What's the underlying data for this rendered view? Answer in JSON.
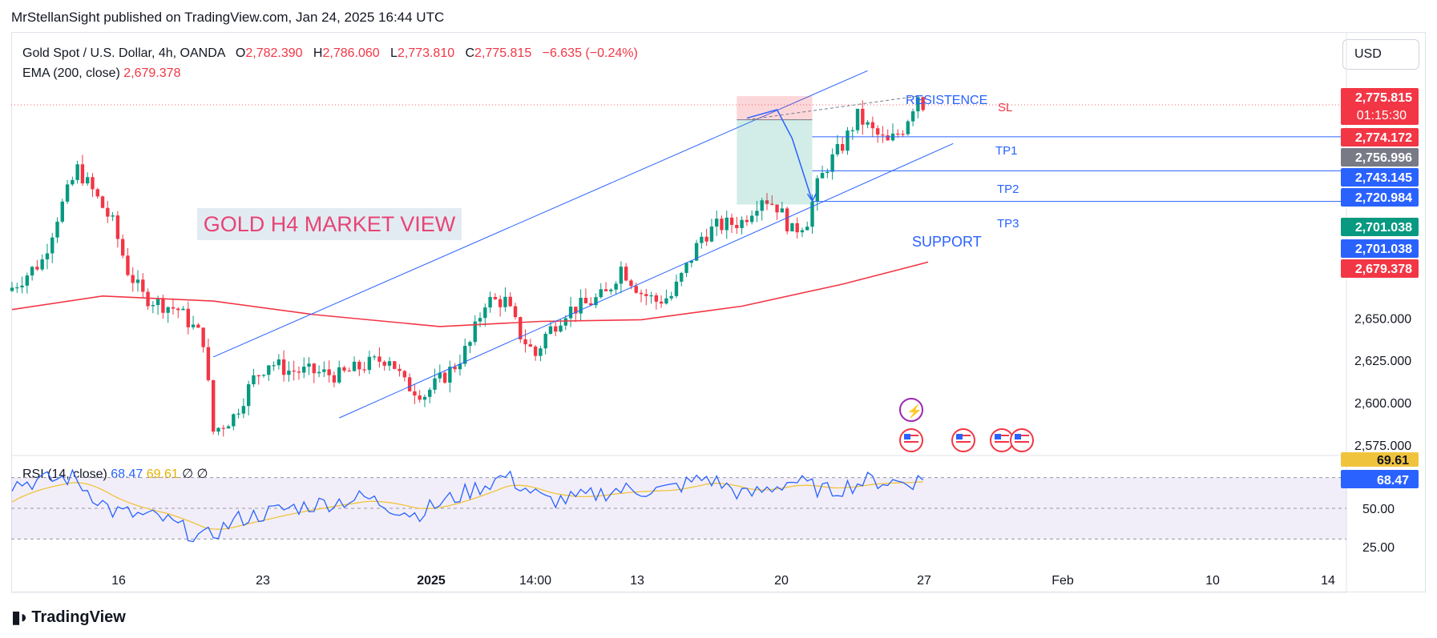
{
  "publisher": "MrStellanSight published on TradingView.com, Jan 24, 2025 16:44 UTC",
  "legend": {
    "symbol": "Gold Spot / U.S. Dollar, 4h, OANDA",
    "o_label": "O",
    "o": "2,782.390",
    "h_label": "H",
    "h": "2,786.060",
    "l_label": "L",
    "l": "2,773.810",
    "c_label": "C",
    "c": "2,775.815",
    "change": "−6.635 (−0.24%)",
    "ema_label": "EMA (200, close)",
    "ema_value": "2,679.378"
  },
  "currency_button": "USD",
  "rsi_legend": {
    "label": "RSI (14, close)",
    "rsi": "68.47",
    "ma": "69.61",
    "extra1": "∅",
    "extra2": "∅"
  },
  "brand": "TradingView",
  "colors": {
    "up": "#089981",
    "down": "#f23645",
    "ema": "#f23645",
    "channel": "#2962ff",
    "rsi": "#2962ff",
    "rsi_ma": "#f0c33c",
    "annotation_pink": "#e64576"
  },
  "chart_data": [
    {
      "type": "candlestick",
      "title": "Gold Spot / U.S. Dollar, 4h, OANDA",
      "y_axis_ticks": [
        "2,650.000",
        "2,625.000",
        "2,600.000",
        "2,575.000"
      ],
      "y_ticks": [
        2650,
        2625,
        2600,
        2575
      ],
      "x_axis_ticks": [
        "16",
        "23",
        "2025",
        "14:00",
        "13",
        "20",
        "27",
        "Feb",
        "10",
        "14"
      ],
      "ylim": [
        2566,
        2793
      ],
      "close_path": [
        [
          0,
          2668
        ],
        [
          6,
          2684
        ],
        [
          9,
          2710
        ],
        [
          13,
          2738
        ],
        [
          16,
          2725
        ],
        [
          20,
          2706
        ],
        [
          23,
          2678
        ],
        [
          26,
          2663
        ],
        [
          30,
          2658
        ],
        [
          33,
          2655
        ],
        [
          37,
          2641
        ],
        [
          38,
          2637
        ],
        [
          40,
          2583
        ],
        [
          44,
          2592
        ],
        [
          48,
          2614
        ],
        [
          51,
          2624
        ],
        [
          55,
          2619
        ],
        [
          60,
          2618
        ],
        [
          65,
          2616
        ],
        [
          70,
          2622
        ],
        [
          75,
          2627
        ],
        [
          78,
          2611
        ],
        [
          82,
          2605
        ],
        [
          86,
          2616
        ],
        [
          88,
          2622
        ],
        [
          91,
          2635
        ],
        [
          94,
          2660
        ],
        [
          98,
          2660
        ],
        [
          101,
          2640
        ],
        [
          104,
          2628
        ],
        [
          106,
          2640
        ],
        [
          110,
          2654
        ],
        [
          114,
          2658
        ],
        [
          118,
          2664
        ],
        [
          121,
          2680
        ],
        [
          125,
          2665
        ],
        [
          128,
          2660
        ],
        [
          131,
          2663
        ],
        [
          134,
          2680
        ],
        [
          137,
          2698
        ],
        [
          140,
          2704
        ],
        [
          145,
          2707
        ],
        [
          149,
          2722
        ],
        [
          152,
          2716
        ],
        [
          155,
          2701
        ],
        [
          158,
          2708
        ],
        [
          160,
          2728
        ],
        [
          162,
          2740
        ],
        [
          165,
          2752
        ],
        [
          168,
          2769
        ],
        [
          171,
          2760
        ],
        [
          174,
          2753
        ],
        [
          177,
          2762
        ],
        [
          180,
          2782
        ],
        [
          181,
          2776
        ]
      ],
      "ema_path": [
        [
          0,
          2655
        ],
        [
          18,
          2663
        ],
        [
          40,
          2660
        ],
        [
          60,
          2652
        ],
        [
          85,
          2645
        ],
        [
          105,
          2648
        ],
        [
          125,
          2649
        ],
        [
          145,
          2657
        ],
        [
          165,
          2670
        ],
        [
          182,
          2683
        ]
      ],
      "last_price_labels": [
        {
          "text": "2,775.815",
          "sub": "01:15:30",
          "color": "#f23645"
        },
        {
          "text": "2,774.172",
          "color": "#f23645"
        },
        {
          "text": "2,756.996",
          "color": "#787b86"
        },
        {
          "text": "2,743.145",
          "color": "#2962ff"
        },
        {
          "text": "2,720.984",
          "color": "#2962ff"
        },
        {
          "text": "2,701.038",
          "color": "#089981"
        },
        {
          "text": "2,701.038",
          "color": "#2962ff"
        },
        {
          "text": "2,679.378",
          "color": "#f23645"
        }
      ],
      "annotations": {
        "title": "GOLD H4 MARKET VIEW",
        "resistance": "RESISTENCE",
        "support": "SUPPORT",
        "sl": "SL",
        "tp1": "TP1",
        "tp2": "TP2",
        "tp3": "TP3"
      }
    },
    {
      "type": "line",
      "title": "RSI (14, close)",
      "series": [
        {
          "name": "RSI",
          "last": 68.47
        },
        {
          "name": "RSI MA",
          "last": 69.61
        }
      ],
      "y_axis_ticks": [
        "50.00",
        "25.00"
      ],
      "y_ticks": [
        50,
        25
      ],
      "ylim": [
        15,
        90
      ],
      "labels": [
        {
          "text": "69.61",
          "color": "#f0c33c"
        },
        {
          "text": "68.47",
          "color": "#2962ff"
        }
      ]
    }
  ]
}
